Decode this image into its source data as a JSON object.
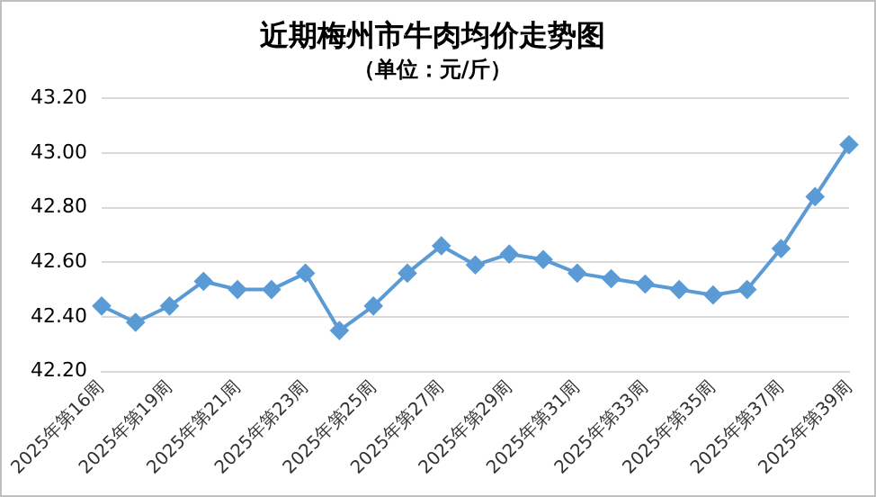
{
  "chart_data": {
    "type": "line",
    "title": "近期梅州市牛肉均价走势图",
    "subtitle": "（单位：元/斤）",
    "categories": [
      "2025年第16周",
      null,
      "2025年第19周",
      null,
      "2025年第21周",
      null,
      "2025年第23周",
      null,
      "2025年第25周",
      null,
      "2025年第27周",
      null,
      "2025年第29周",
      null,
      "2025年第31周",
      null,
      "2025年第33周",
      null,
      "2025年第35周",
      null,
      "2025年第37周",
      null,
      "2025年第39周"
    ],
    "series": [
      {
        "color": "#5b9bd5",
        "values": [
          42.44,
          42.38,
          42.44,
          42.53,
          42.5,
          42.5,
          42.56,
          42.35,
          42.44,
          42.56,
          42.66,
          42.59,
          42.63,
          42.61,
          42.56,
          42.54,
          42.52,
          42.5,
          42.48,
          42.5,
          42.65,
          42.84,
          43.03
        ]
      }
    ],
    "ylim": [
      42.2,
      43.2
    ],
    "yticks": [
      {
        "value": 42.2,
        "label": "42.20"
      },
      {
        "value": 42.4,
        "label": "42.40"
      },
      {
        "value": 42.6,
        "label": "42.60"
      },
      {
        "value": 42.8,
        "label": "42.80"
      },
      {
        "value": 43.0,
        "label": "43.00"
      },
      {
        "value": 43.2,
        "label": "43.20"
      }
    ],
    "grid": "y",
    "legend": false,
    "marker": "diamond",
    "line_style": "solid"
  }
}
